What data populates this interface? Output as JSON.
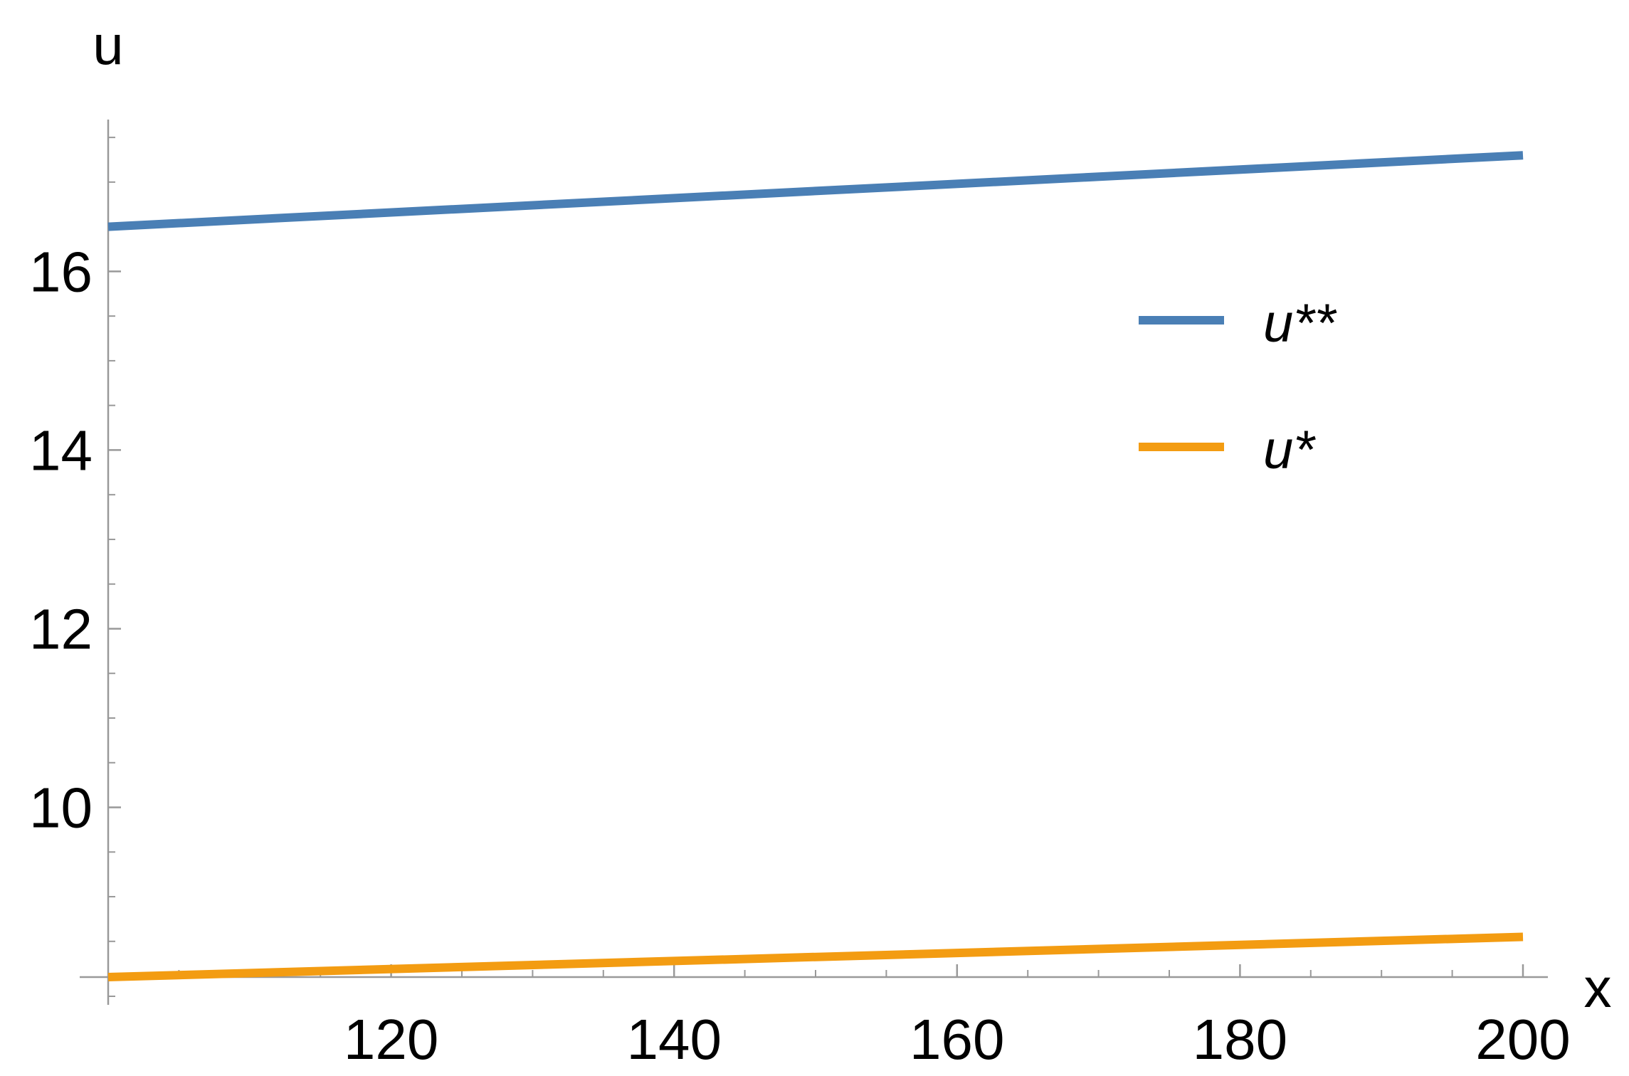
{
  "chart_data": {
    "type": "line",
    "xlabel": "x",
    "ylabel": "u",
    "xlim": [
      100,
      200
    ],
    "ylim": [
      8.1,
      17.7
    ],
    "x_ticks": [
      120,
      140,
      160,
      180,
      200
    ],
    "x_minor_step": 5,
    "y_ticks": [
      10,
      12,
      14,
      16
    ],
    "y_minor_step": 0.5,
    "grid": false,
    "legend_position": "right",
    "series": [
      {
        "name": "u**",
        "color": "#4a7fb5",
        "x": [
          100,
          200
        ],
        "values": [
          16.5,
          17.3
        ]
      },
      {
        "name": "u*",
        "color": "#f39c12",
        "x": [
          100,
          200
        ],
        "values": [
          8.1,
          8.55
        ]
      }
    ]
  }
}
